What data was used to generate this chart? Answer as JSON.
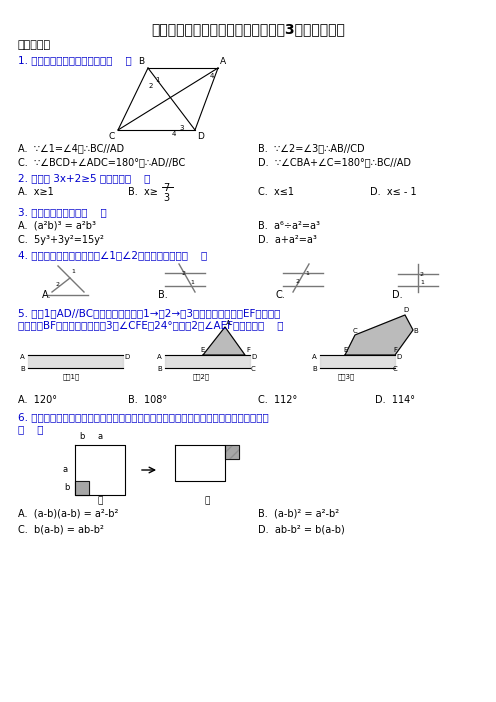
{
  "title": "新苏科版七年级数学下册第二学期第3次月考测试卷",
  "background_color": "#ffffff",
  "title_fontsize": 10,
  "body_fontsize": 7.5,
  "text_color": "#000000",
  "blue_color": "#0000cd",
  "section_title": "一、选择题",
  "q1_text": "1. 如图，下列推理中正确的是（    ）",
  "q1_A": "A.  ∵∠1=∠4，∴BC//AD",
  "q1_B": "B.  ∵∠2=∠3，∴AB//CD",
  "q1_C": "C.  ∵∠BCD+∠ADC=180°，∴AD//BC",
  "q1_D": "D.  ∵∠CBA+∠C=180°，∴BC//AD",
  "q2_text": "2. 不等式 3x+2≥5 的解集是（    ）",
  "q2_A": "A.  x≥1",
  "q2_B": "B.  x≥",
  "q2_B2": "7",
  "q2_B3": "3",
  "q2_C": "C.  x≤1",
  "q2_D": "D.  x≤ - 1",
  "q3_text": "3. 下列运算正确的是（    ）",
  "q3_A": "A.  (a²b)³ = a²b³",
  "q3_B": "B.  a⁶÷a²=a³",
  "q3_C": "C.  5y³+3y²=15y²",
  "q3_D": "D.  a+a²=a³",
  "q4_text": "4. 如图所示的四个图形中，∠1和∠2不是同位角的是（    ）",
  "q5_text1": "5. 如图1是AD//BC的一张纸条，按图1→图2→图3，把这一纸条先沿EF折叠并压",
  "q5_text2": "平，再沿BF折叠并压平，若图3中∠CFE＝24°，则图2中∠AEF的度数为（    ）",
  "q5_A": "A.  120°",
  "q5_B": "B.  108°",
  "q5_C": "C.  112°",
  "q5_D": "D.  114°",
  "q6_text1": "6. 将图甲中阴影部分的小长方形变换到图乙位置，能根据图形的面积关系得到的关系式是",
  "q6_text2": "（    ）",
  "q6_A": "A.  (a-b)(a-b) = a²-b²",
  "q6_B": "B.  (a-b)² = a²-b²",
  "q6_C": "C.  b(a-b) = ab-b²",
  "q6_D": "D.  ab-b² = b(a-b)"
}
